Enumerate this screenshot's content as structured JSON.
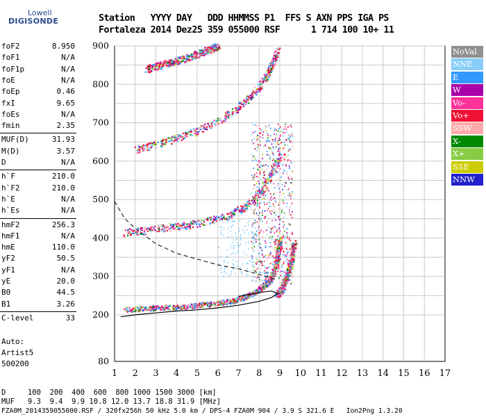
{
  "logo": {
    "top": "Lowell",
    "bottom": "DIGISONDE"
  },
  "header": {
    "line1": "Station   YYYY DAY   DDD HHMMSS P1  FFS S AXN PPS IGA PS",
    "line2": "Fortaleza 2014 Dez25 359 055000 RSF      1 714 100 10+ 11"
  },
  "params_groups": [
    [
      [
        "foF2",
        "8.950"
      ],
      [
        "foF1",
        "N/A"
      ],
      [
        "foF1p",
        "N/A"
      ],
      [
        "foE",
        "N/A"
      ],
      [
        "foEp",
        "0.46"
      ],
      [
        "fxI",
        "9.65"
      ],
      [
        "foEs",
        "N/A"
      ],
      [
        "fmin",
        "2.35"
      ]
    ],
    [
      [
        "MUF(D)",
        "31.93"
      ],
      [
        "M(D)",
        "3.57"
      ],
      [
        "D",
        "N/A"
      ]
    ],
    [
      [
        "h`F",
        "210.0"
      ],
      [
        "h`F2",
        "210.0"
      ],
      [
        "h`E",
        "N/A"
      ],
      [
        "h`Es",
        "N/A"
      ]
    ],
    [
      [
        "hmF2",
        "256.3"
      ],
      [
        "hmF1",
        "N/A"
      ],
      [
        "hmE",
        "110.0"
      ],
      [
        "yF2",
        "50.5"
      ],
      [
        "yF1",
        "N/A"
      ],
      [
        "yE",
        "20.0"
      ],
      [
        "B0",
        "44.5"
      ],
      [
        "B1",
        "3.26"
      ]
    ],
    [
      [
        "C-level",
        "33"
      ]
    ]
  ],
  "auto": {
    "line1": "Auto:",
    "line2": "Artist5",
    "line3": "500200"
  },
  "legend": [
    {
      "label": "NoVal",
      "color": "#909090"
    },
    {
      "label": "NNE",
      "color": "#87cefa"
    },
    {
      "label": "E",
      "color": "#3399ff"
    },
    {
      "label": "W",
      "color": "#aa00aa"
    },
    {
      "label": "Vo-",
      "color": "#ff3399"
    },
    {
      "label": "Vo+",
      "color": "#ee1133"
    },
    {
      "label": "SSW",
      "color": "#ffaaaa"
    },
    {
      "label": "X-",
      "color": "#008800"
    },
    {
      "label": "X+",
      "color": "#88cc44"
    },
    {
      "label": "SSE",
      "color": "#cccc00"
    },
    {
      "label": "NNW",
      "color": "#2222cc"
    }
  ],
  "footer": {
    "d_line": "D     100  200  400  600  800 1000 1500 3000 [km]",
    "muf_line": "MUF   9.3  9.4  9.9 10.8 12.0 13.7 18.8 31.9 [MHz]",
    "file_line": "FZA0M_2014359055000.RSF / 320fx256h 50 kHz 5.0 km / DPS-4 FZA0M 904 / 3.9 S 321.6 E   Ion2Png 1.3.20"
  },
  "chart_data": {
    "type": "scatter",
    "xlim": [
      1,
      17
    ],
    "ylim": [
      80,
      900
    ],
    "xticks": [
      1,
      2,
      3,
      4,
      5,
      6,
      7,
      8,
      9,
      10,
      11,
      12,
      13,
      14,
      15,
      16,
      17
    ],
    "yticks": [
      80,
      200,
      300,
      400,
      500,
      600,
      700,
      800,
      900
    ],
    "grid": true,
    "echo_traces": [
      {
        "name": "O-trace 1st hop",
        "points": [
          [
            1.5,
            215
          ],
          [
            2.5,
            218
          ],
          [
            3.5,
            220
          ],
          [
            4.5,
            223
          ],
          [
            5.5,
            228
          ],
          [
            6.5,
            235
          ],
          [
            7.2,
            245
          ],
          [
            7.8,
            260
          ],
          [
            8.3,
            280
          ],
          [
            8.6,
            300
          ],
          [
            8.8,
            330
          ],
          [
            8.9,
            360
          ],
          [
            9.0,
            400
          ]
        ]
      },
      {
        "name": "X-trace 1st hop",
        "points": [
          [
            8.8,
            250
          ],
          [
            9.1,
            270
          ],
          [
            9.3,
            300
          ],
          [
            9.5,
            330
          ],
          [
            9.6,
            360
          ],
          [
            9.7,
            390
          ]
        ]
      },
      {
        "name": "2nd hop",
        "points": [
          [
            1.5,
            415
          ],
          [
            2.5,
            420
          ],
          [
            3.5,
            428
          ],
          [
            4.5,
            435
          ],
          [
            5.5,
            445
          ],
          [
            6.5,
            460
          ],
          [
            7.2,
            480
          ],
          [
            7.8,
            505
          ],
          [
            8.3,
            540
          ],
          [
            8.7,
            580
          ],
          [
            9.0,
            620
          ]
        ]
      },
      {
        "name": "3rd hop",
        "points": [
          [
            2,
            630
          ],
          [
            3,
            645
          ],
          [
            4,
            660
          ],
          [
            5,
            680
          ],
          [
            6,
            705
          ],
          [
            7,
            740
          ],
          [
            7.7,
            775
          ],
          [
            8.2,
            810
          ],
          [
            8.6,
            850
          ],
          [
            8.9,
            890
          ]
        ]
      },
      {
        "name": "4th hop",
        "points": [
          [
            2.5,
            840
          ],
          [
            3.5,
            855
          ],
          [
            4.5,
            870
          ],
          [
            5.5,
            890
          ],
          [
            6,
            900
          ]
        ]
      }
    ],
    "profile_solid": [
      [
        1.3,
        195
      ],
      [
        2,
        200
      ],
      [
        3,
        205
      ],
      [
        4,
        210
      ],
      [
        5,
        213
      ],
      [
        6,
        218
      ],
      [
        7,
        225
      ],
      [
        8,
        235
      ],
      [
        8.6,
        245
      ],
      [
        8.9,
        256
      ],
      [
        8.6,
        262
      ],
      [
        8,
        258
      ],
      [
        7,
        248
      ]
    ],
    "profile_dashed": [
      [
        1,
        495
      ],
      [
        1.5,
        450
      ],
      [
        2,
        425
      ],
      [
        2.5,
        405
      ],
      [
        3,
        385
      ],
      [
        4,
        360
      ],
      [
        5,
        345
      ],
      [
        6,
        330
      ],
      [
        7,
        320
      ],
      [
        8,
        305
      ],
      [
        8.9,
        290
      ]
    ]
  }
}
